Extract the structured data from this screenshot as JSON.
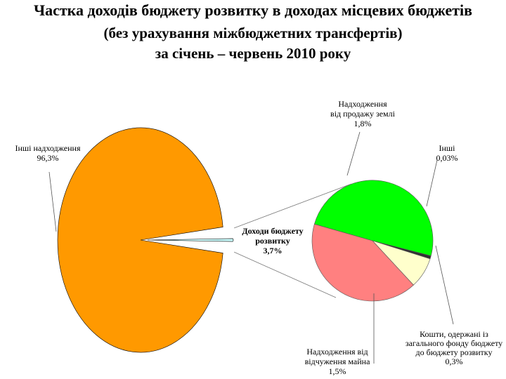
{
  "title": {
    "line1": "Частка доходів бюджету розвитку в доходах місцевих бюджетів",
    "line2": "(без урахування міжбюджетних трансфертів)",
    "line3": "за січень – червень 2010 року"
  },
  "chart_data": {
    "type": "pie",
    "main_pie": {
      "slices": [
        {
          "name": "Інші надходження",
          "value": 96.3,
          "value_label": "96,3%",
          "color": "#FF9900"
        },
        {
          "name": "Доходи бюджету розвитку",
          "value": 3.7,
          "value_label": "3,7%",
          "color": "#CCFFFF"
        }
      ]
    },
    "breakdown_pie": {
      "of": "Доходи бюджету розвитку",
      "slices": [
        {
          "name": "Надходження від продажу землі",
          "value": 1.8,
          "value_label": "1,8%",
          "color": "#00FF00"
        },
        {
          "name": "Інші",
          "value": 0.03,
          "value_label": "0,03%",
          "color": "#333333"
        },
        {
          "name": "Кошти, одержані із загального фонду бюджету до бюджету розвитку",
          "value": 0.3,
          "value_label": "0,3%",
          "color": "#FFFFCC"
        },
        {
          "name": "Надходження від відчуження майна",
          "value": 1.5,
          "value_label": "1,5%",
          "color": "#FF8080"
        }
      ]
    },
    "labels": {
      "other_income": [
        "Інші надходження",
        "96,3%"
      ],
      "dev_budget": [
        "Доходи бюджету",
        "розвитку",
        "3,7%"
      ],
      "land": [
        "Надходження",
        "від продажу землі",
        "1,8%"
      ],
      "other": [
        "Інші",
        "0,03%"
      ],
      "general_fund": [
        "Кошти, одержані із",
        "загального фонду бюджету",
        "до бюджету розвитку",
        "0,3%"
      ],
      "property": [
        "Надходження від",
        "відчуження майна",
        "1,5%"
      ]
    }
  }
}
